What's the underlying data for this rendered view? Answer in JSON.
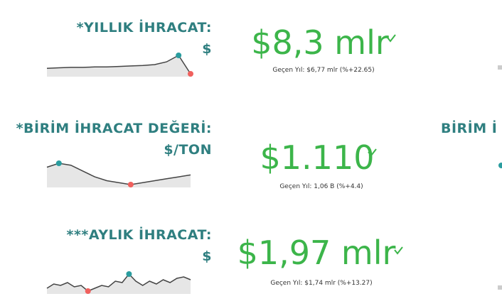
{
  "kpis": [
    {
      "title": "*YILLIK İHRACAT:",
      "unit": "$",
      "value": "$8,3 mlr",
      "comparison": "Geçen Yıl: $6,77 mlr (%+22.65)",
      "sparkline": [
        5.2,
        5.25,
        5.3,
        5.3,
        5.35,
        5.35,
        5.4,
        5.45,
        5.5,
        5.6,
        5.9,
        6.6,
        4.6
      ]
    },
    {
      "title": "*BİRİM İHRACAT DEĞERİ:",
      "unit": "$/TON",
      "value": "$1.110",
      "comparison": "Geçen Yıl: 1,06 B (%+4.4)",
      "sparkline": [
        1.02,
        1.04,
        1.03,
        1.0,
        0.97,
        0.95,
        0.94,
        0.93,
        0.94,
        0.95,
        0.96,
        0.97,
        0.98
      ]
    },
    {
      "title": "***AYLIK İHRACAT:",
      "unit": "$",
      "value": "$1,97 mlr",
      "comparison": "Geçen Yıl: $1,74 mlr (%+13.27)",
      "sparkline": [
        1.6,
        1.75,
        1.7,
        1.8,
        1.65,
        1.7,
        1.5,
        1.6,
        1.7,
        1.65,
        1.85,
        1.8,
        2.1,
        1.85,
        1.7,
        1.85,
        1.75,
        1.9,
        1.8,
        1.95,
        2.0,
        1.9
      ]
    }
  ],
  "partial_titles": [
    "BİRİM İ"
  ]
}
